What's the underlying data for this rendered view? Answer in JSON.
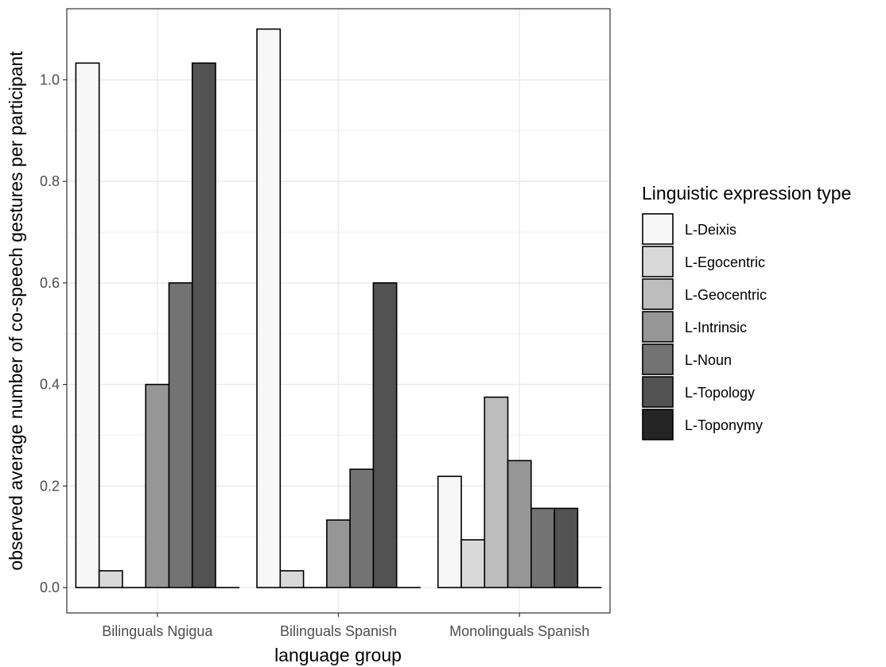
{
  "chart_data": {
    "type": "bar",
    "xlabel": "language group",
    "ylabel": "observed average number of co-speech gestures per participant",
    "ylim": [
      -0.05,
      1.14
    ],
    "yticks": [
      0.0,
      0.2,
      0.4,
      0.6,
      0.8,
      1.0
    ],
    "ytick_labels": [
      "0.0",
      "0.2",
      "0.4",
      "0.6",
      "0.8",
      "1.0"
    ],
    "grid": true,
    "legend_position": "right",
    "legend_title": "Linguistic expression type",
    "categories": [
      "Bilinguals Ngigua",
      "Bilinguals Spanish",
      "Monolinguals Spanish"
    ],
    "series": [
      {
        "name": "L-Deixis",
        "color": "#f7f7f7",
        "values": [
          1.033,
          1.1,
          0.219
        ]
      },
      {
        "name": "L-Egocentric",
        "color": "#d9d9d9",
        "values": [
          0.033,
          0.033,
          0.094
        ]
      },
      {
        "name": "L-Geocentric",
        "color": "#bdbdbd",
        "values": [
          0.0,
          0.0,
          0.375
        ]
      },
      {
        "name": "L-Intrinsic",
        "color": "#969696",
        "values": [
          0.4,
          0.133,
          0.25
        ]
      },
      {
        "name": "L-Noun",
        "color": "#737373",
        "values": [
          0.6,
          0.233,
          0.156
        ]
      },
      {
        "name": "L-Topology",
        "color": "#525252",
        "values": [
          1.033,
          0.6,
          0.156
        ]
      },
      {
        "name": "L-Toponymy",
        "color": "#252525",
        "values": [
          0.0,
          0.0,
          0.0
        ]
      }
    ]
  }
}
